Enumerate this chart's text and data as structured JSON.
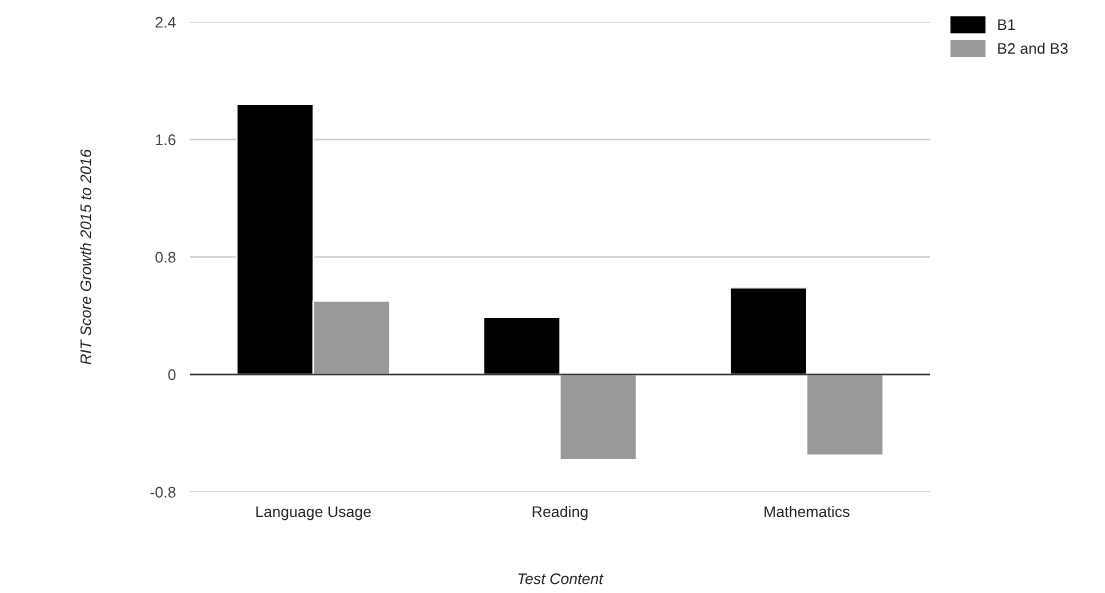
{
  "chart_data": {
    "type": "bar",
    "xlabel": "Test Content",
    "ylabel": "RIT Score Growth 2015 to 2016",
    "categories": [
      "Language Usage",
      "Reading",
      "Mathematics"
    ],
    "series": [
      {
        "name": "B1",
        "color": "#000000",
        "values": [
          1.84,
          0.39,
          0.59
        ]
      },
      {
        "name": "B2 and B3",
        "color": "#999999",
        "values": [
          0.5,
          -0.58,
          -0.55
        ]
      }
    ],
    "ylim": [
      -0.8,
      2.4
    ],
    "yticks": [
      -0.8,
      0,
      0.8,
      1.6,
      2.4
    ],
    "grid": "y",
    "legend": "top right"
  }
}
